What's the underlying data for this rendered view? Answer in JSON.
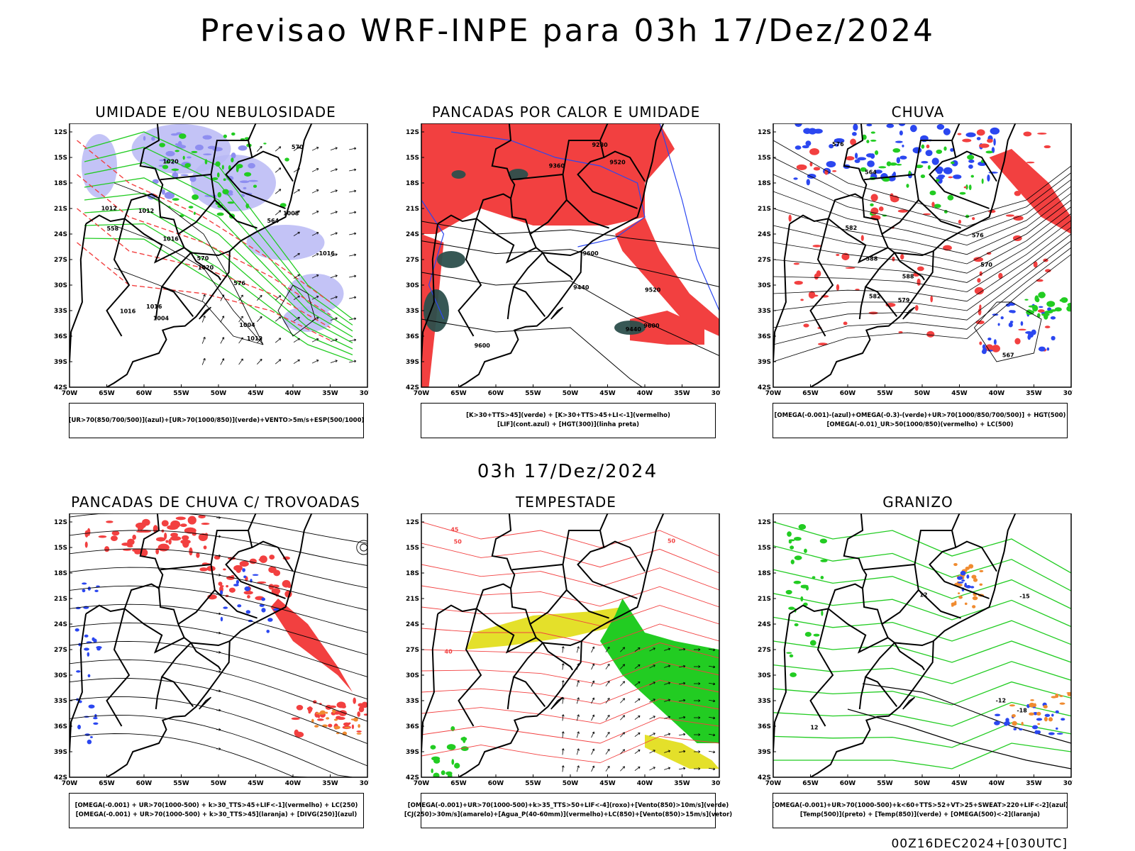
{
  "header": {
    "title": "Previsao WRF-INPE  para 03h 17/Dez/2024",
    "mid_title": "03h 17/Dez/2024",
    "footer": "00Z16DEC2024+[030UTC]"
  },
  "axes": {
    "lat_labels": [
      "12S",
      "15S",
      "18S",
      "21S",
      "24S",
      "27S",
      "30S",
      "33S",
      "36S",
      "39S",
      "42S"
    ],
    "lon_labels": [
      "70W",
      "65W",
      "60W",
      "55W",
      "50W",
      "45W",
      "40W",
      "35W",
      "30W"
    ]
  },
  "panels": [
    {
      "title": "UMIDADE E/OU NEBULOSIDADE",
      "legend": [
        "[UR>70(850/700/500)](azul)+[UR>70(1000/850)](verde)+VENTO>5m/s+ESP(500/1000)"
      ],
      "labels": [
        "1012",
        "1020",
        "1016",
        "1012",
        "1008",
        "1004",
        "1016",
        "1016",
        "1020",
        "1004",
        "1016",
        "1012",
        "570",
        "576",
        "564",
        "570",
        "558"
      ]
    },
    {
      "title": "PANCADAS POR CALOR E UMIDADE",
      "legend": [
        "[K>30+TTS>45](verde) + [K>30+TTS>45+LI<-1](vermelho)",
        "[LIF](cont.azul) + [HGT(300)](linha preta)"
      ],
      "labels": [
        "9600",
        "9520",
        "9600",
        "9440",
        "9360",
        "9280",
        "9600",
        "9520",
        "9440"
      ]
    },
    {
      "title": "CHUVA",
      "legend": [
        "[OMEGA(-0.001)-(azul)+OMEGA(-0.3)-(verde)+UR>70(1000/850/700/500)] + HGT(500)",
        "[OMEGA(-0.01)_UR>50(1000/850)(vermelho) + LC(500)"
      ],
      "labels": [
        "588",
        "582",
        "576",
        "570",
        "567",
        "564",
        "579",
        "588",
        "582",
        "576"
      ]
    },
    {
      "title": "PANCADAS DE CHUVA C/ TROVOADAS",
      "legend": [
        "[OMEGA(-0.001) + UR>70(1000-500) + k>30_TTS>45+LIF<-1](vermelho) + LC(250)",
        "[OMEGA(-0.001) + UR>70(1000-500) + k>30_TTS>45](laranja) + [DIVG(250)](azul)"
      ],
      "labels": []
    },
    {
      "title": "TEMPESTADE",
      "legend": [
        "[OMEGA(-0.001)+UR>70(1000-500)+k>35_TTS>50+LIF<-4](roxo)+[Vento(850)>10m/s](verde)",
        "[CJ(250)>30m/s](amarelo)+[Agua_P(40-60mm)](vermelho)+LC(850)+[Vento(850)>15m/s](vetor)"
      ],
      "labels": [
        "50",
        "45",
        "40",
        "50"
      ]
    },
    {
      "title": "GRANIZO",
      "legend": [
        "[OMEGA(-0.001)+UR>70(1000-500)+k<60+TTS>52+VT>25+SWEAT>220+LIF<-2](azul)",
        "[Temp(500)](preto) + [Temp(850)](verde) + [OMEGA(500)<-2](laranja)"
      ],
      "labels": [
        "-12",
        "-15",
        "-18",
        "12",
        "12"
      ]
    }
  ],
  "colors": {
    "frame": "#000000",
    "land_blue": "#b9b9f4",
    "blue": "#2b47f0",
    "green": "#22cc22",
    "red": "#f24040",
    "dark_teal": "#2c4f4c",
    "yellow": "#e4e02a",
    "orange": "#f08b30",
    "purple": "#a020f0"
  }
}
